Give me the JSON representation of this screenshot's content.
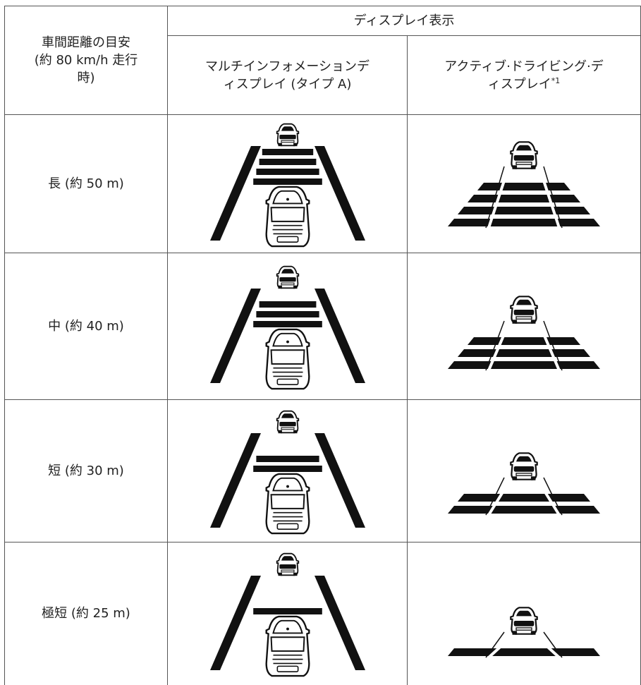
{
  "table": {
    "header": {
      "distance": [
        "車間距離の目安",
        "(約 80 km/h 走行",
        "時)"
      ],
      "display": "ディスプレイ表示",
      "multi_info": [
        "マルチインフォメーションデ",
        "ィスプレイ (タイプ A)"
      ],
      "active_driving": [
        "アクティブ·ドライビング·デ",
        "ィスプレイ"
      ],
      "active_driving_note": "*1"
    },
    "rows": [
      "長 (約 50 m)",
      "中 (約 40 m)",
      "短 (約 30 m)",
      "極短 (約 25 m)"
    ]
  }
}
